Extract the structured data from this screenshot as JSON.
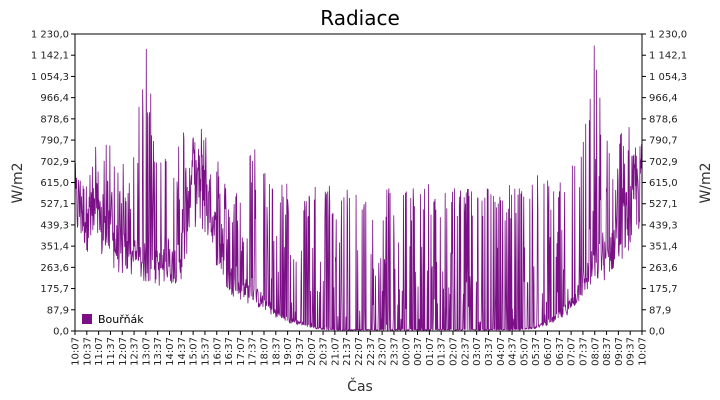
{
  "chart_data": {
    "type": "line",
    "title": "Radiace",
    "xlabel": "Čas",
    "ylabel": "W/m2",
    "ylabel_right": "W/m2",
    "ylim": [
      0,
      1230
    ],
    "y_ticks": [
      "0,0",
      "87,9",
      "175,7",
      "263,6",
      "351,4",
      "439,3",
      "527,1",
      "615,0",
      "702,9",
      "790,7",
      "878,6",
      "966,4",
      "1 054,3",
      "1 142,1",
      "1 230,0"
    ],
    "x_ticks": [
      "10:07",
      "10:37",
      "11:07",
      "11:37",
      "12:07",
      "12:37",
      "13:07",
      "13:37",
      "14:07",
      "14:37",
      "15:07",
      "15:37",
      "16:07",
      "16:37",
      "17:07",
      "17:37",
      "18:07",
      "18:37",
      "19:07",
      "19:37",
      "20:07",
      "20:37",
      "21:07",
      "21:37",
      "22:07",
      "22:37",
      "23:07",
      "23:37",
      "00:07",
      "00:37",
      "01:07",
      "01:37",
      "02:07",
      "02:37",
      "03:07",
      "03:37",
      "04:07",
      "04:37",
      "05:07",
      "05:37",
      "06:07",
      "06:37",
      "07:07",
      "07:37",
      "08:07",
      "08:37",
      "09:07",
      "09:37",
      "10:07"
    ],
    "grid": true,
    "legend_position": "bottom-left",
    "series": [
      {
        "name": "Bouřňák",
        "color": "#7a0f86",
        "x": [
          "10:07",
          "10:37",
          "11:07",
          "11:37",
          "12:07",
          "12:37",
          "13:07",
          "13:37",
          "14:07",
          "14:37",
          "15:07",
          "15:37",
          "16:07",
          "16:37",
          "17:07",
          "17:37",
          "18:07",
          "18:37",
          "19:07",
          "19:37",
          "20:07",
          "20:37",
          "21:07",
          "21:37",
          "22:07",
          "22:37",
          "23:07",
          "23:37",
          "00:07",
          "00:37",
          "01:07",
          "01:37",
          "02:07",
          "02:37",
          "03:07",
          "03:37",
          "04:07",
          "04:37",
          "05:07",
          "05:37",
          "06:07",
          "06:37",
          "07:07",
          "07:37",
          "08:07",
          "08:37",
          "09:07",
          "09:37",
          "10:07"
        ],
        "y": [
          540,
          470,
          420,
          380,
          320,
          300,
          280,
          260,
          270,
          300,
          620,
          560,
          380,
          220,
          180,
          150,
          120,
          75,
          45,
          35,
          18,
          8,
          5,
          5,
          5,
          5,
          5,
          5,
          5,
          5,
          5,
          5,
          5,
          5,
          5,
          5,
          5,
          5,
          8,
          15,
          35,
          60,
          110,
          200,
          280,
          300,
          400,
          480,
          620
        ],
        "max": [
          640,
          700,
          800,
          790,
          760,
          720,
          1230,
          820,
          700,
          840,
          960,
          890,
          760,
          560,
          620,
          800,
          690,
          640,
          620,
          610,
          610,
          610,
          610,
          610,
          610,
          610,
          610,
          610,
          610,
          610,
          610,
          610,
          610,
          610,
          610,
          610,
          610,
          610,
          610,
          650,
          640,
          660,
          700,
          800,
          1230,
          850,
          820,
          880,
          880
        ]
      }
    ]
  }
}
